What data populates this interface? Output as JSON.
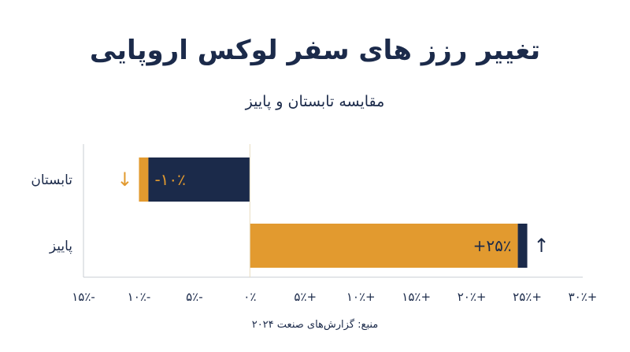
{
  "title": "تغییر رزز های سفر لوکس اروپایی",
  "subtitle": "مقایسه تابستان و پاییز",
  "source": "منبع: گزارش‌های صنعت ۲۰۲۴",
  "colors": {
    "navy": "#1b2a4a",
    "gold": "#e29a2f",
    "axis": "#c9ccd3"
  },
  "chart_data": {
    "type": "bar",
    "orientation": "horizontal",
    "categories": [
      "تابستان",
      "پاییز"
    ],
    "values": [
      -10,
      25
    ],
    "value_labels": [
      "-۱۰٪",
      "+۲۵٪"
    ],
    "arrows": [
      "↓",
      "↑"
    ],
    "xlim": [
      -15,
      30
    ],
    "xticks": [
      -15,
      -10,
      -5,
      0,
      5,
      10,
      15,
      20,
      25,
      30
    ],
    "xtick_labels": [
      "-۱۵٪",
      "-۱۰٪",
      "-۵٪",
      "۰٪",
      "+۵٪",
      "+۱۰٪",
      "+۱۵٪",
      "+۲۰٪",
      "+۲۵٪",
      "+۳۰٪"
    ],
    "title": "تغییر رزز های سفر لوکس اروپایی",
    "xlabel": "",
    "ylabel": "",
    "grid": false,
    "legend": "none"
  }
}
